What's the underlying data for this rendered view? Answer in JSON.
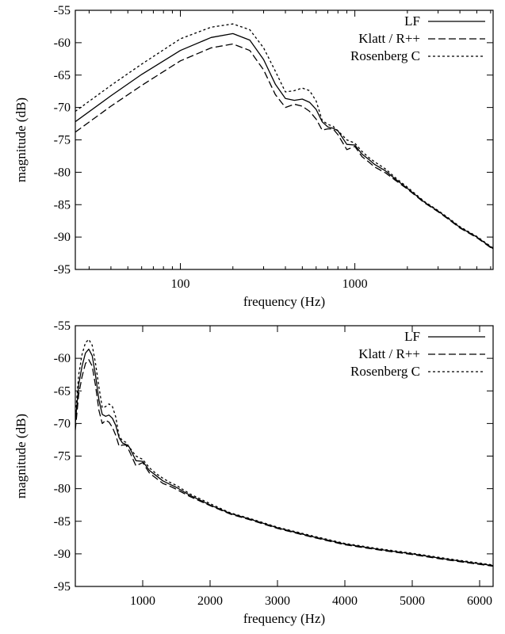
{
  "chart_data": [
    {
      "type": "line",
      "x_scale": "log",
      "xlim": [
        25,
        6200
      ],
      "ylim": [
        -95,
        -55
      ],
      "xlabel": "frequency (Hz)",
      "ylabel": "magnitude (dB)",
      "x_ticks": [
        100,
        1000
      ],
      "x_tick_labels": [
        "100",
        "1000"
      ],
      "y_ticks": [
        -55,
        -60,
        -65,
        -70,
        -75,
        -80,
        -85,
        -90,
        -95
      ],
      "y_tick_labels": [
        "-55",
        "-60",
        "-65",
        "-70",
        "-75",
        "-80",
        "-85",
        "-90",
        "-95"
      ],
      "grid": false,
      "legend_position": "top-right",
      "series": [
        {
          "name": "LF",
          "line_style": "solid",
          "x": [
            25,
            40,
            60,
            100,
            150,
            200,
            250,
            300,
            350,
            400,
            450,
            500,
            550,
            600,
            650,
            700,
            750,
            800,
            900,
            1000,
            1100,
            1200,
            1300,
            1500,
            1700,
            2000,
            2500,
            3000,
            3500,
            4000,
            5000,
            6200
          ],
          "y": [
            -72.2,
            -68.2,
            -64.9,
            -61.2,
            -59.2,
            -58.6,
            -59.6,
            -62.6,
            -66.4,
            -68.6,
            -68.9,
            -68.7,
            -69.2,
            -70.3,
            -72.2,
            -73.0,
            -73.2,
            -73.6,
            -75.7,
            -75.8,
            -77.2,
            -78.0,
            -78.8,
            -79.8,
            -81.0,
            -82.5,
            -84.6,
            -86.0,
            -87.3,
            -88.5,
            -90.0,
            -91.8
          ]
        },
        {
          "name": "Klatt / R++",
          "line_style": "dashed",
          "x": [
            25,
            40,
            60,
            100,
            150,
            200,
            250,
            300,
            350,
            400,
            450,
            500,
            550,
            600,
            650,
            700,
            750,
            800,
            900,
            1000,
            1100,
            1200,
            1300,
            1500,
            1700,
            2000,
            2500,
            3000,
            3500,
            4000,
            5000,
            6200
          ],
          "y": [
            -73.8,
            -69.8,
            -66.6,
            -62.8,
            -60.8,
            -60.2,
            -61.2,
            -64.2,
            -68.0,
            -70.0,
            -69.5,
            -69.8,
            -70.6,
            -71.8,
            -73.5,
            -73.3,
            -73.3,
            -74.2,
            -76.5,
            -76.0,
            -77.6,
            -78.4,
            -79.2,
            -80.1,
            -81.2,
            -82.6,
            -84.7,
            -86.1,
            -87.4,
            -88.6,
            -90.1,
            -91.9
          ]
        },
        {
          "name": "Rosenberg C",
          "line_style": "dotted",
          "x": [
            25,
            40,
            60,
            100,
            150,
            200,
            250,
            300,
            350,
            400,
            450,
            500,
            550,
            600,
            650,
            700,
            750,
            800,
            900,
            1000,
            1100,
            1200,
            1300,
            1500,
            1700,
            2000,
            2500,
            3000,
            3500,
            4000,
            5000,
            6200
          ],
          "y": [
            -70.6,
            -66.6,
            -63.3,
            -59.4,
            -57.6,
            -57.1,
            -58.0,
            -60.8,
            -64.4,
            -67.6,
            -67.4,
            -67.0,
            -67.4,
            -69.0,
            -72.0,
            -72.6,
            -72.9,
            -73.6,
            -75.0,
            -75.5,
            -76.8,
            -77.7,
            -78.4,
            -79.5,
            -80.8,
            -82.3,
            -84.5,
            -85.9,
            -87.2,
            -88.4,
            -89.9,
            -91.7
          ]
        }
      ]
    },
    {
      "type": "line",
      "x_scale": "linear",
      "xlim": [
        0,
        6200
      ],
      "ylim": [
        -95,
        -55
      ],
      "xlabel": "frequency (Hz)",
      "ylabel": "magnitude (dB)",
      "x_ticks": [
        1000,
        2000,
        3000,
        4000,
        5000,
        6000
      ],
      "x_tick_labels": [
        "1000",
        "2000",
        "3000",
        "4000",
        "5000",
        "6000"
      ],
      "y_ticks": [
        -55,
        -60,
        -65,
        -70,
        -75,
        -80,
        -85,
        -90,
        -95
      ],
      "y_tick_labels": [
        "-55",
        "-60",
        "-65",
        "-70",
        "-75",
        "-80",
        "-85",
        "-90",
        "-95"
      ],
      "grid": false,
      "legend_position": "top-right",
      "series": [
        {
          "name": "LF",
          "line_style": "solid",
          "x": [
            0,
            50,
            100,
            150,
            200,
            250,
            300,
            350,
            400,
            450,
            500,
            550,
            600,
            650,
            700,
            750,
            800,
            900,
            1000,
            1100,
            1200,
            1300,
            1400,
            1500,
            1700,
            2000,
            2300,
            2600,
            3000,
            3500,
            4000,
            4500,
            5000,
            5500,
            6200
          ],
          "y": [
            -70.0,
            -64.0,
            -61.2,
            -59.2,
            -58.6,
            -59.6,
            -62.6,
            -66.4,
            -68.6,
            -68.9,
            -68.7,
            -69.2,
            -70.3,
            -72.2,
            -73.0,
            -73.2,
            -73.6,
            -75.7,
            -75.8,
            -77.2,
            -78.0,
            -78.8,
            -79.3,
            -79.8,
            -81.0,
            -82.5,
            -83.8,
            -84.7,
            -86.0,
            -87.3,
            -88.5,
            -89.3,
            -90.0,
            -90.8,
            -91.8
          ]
        },
        {
          "name": "Klatt / R++",
          "line_style": "dashed",
          "x": [
            0,
            50,
            100,
            150,
            200,
            250,
            300,
            350,
            400,
            450,
            500,
            550,
            600,
            650,
            700,
            750,
            800,
            900,
            1000,
            1100,
            1200,
            1300,
            1400,
            1500,
            1700,
            2000,
            2300,
            2600,
            3000,
            3500,
            4000,
            4500,
            5000,
            5500,
            6200
          ],
          "y": [
            -71.0,
            -65.5,
            -62.8,
            -60.8,
            -60.2,
            -61.2,
            -64.2,
            -68.0,
            -70.0,
            -69.5,
            -69.8,
            -70.6,
            -71.8,
            -73.5,
            -73.3,
            -73.3,
            -74.2,
            -76.5,
            -76.0,
            -77.6,
            -78.4,
            -79.2,
            -79.6,
            -80.1,
            -81.2,
            -82.6,
            -83.9,
            -84.8,
            -86.1,
            -87.4,
            -88.6,
            -89.4,
            -90.1,
            -90.9,
            -91.9
          ]
        },
        {
          "name": "Rosenberg C",
          "line_style": "dotted",
          "x": [
            0,
            50,
            100,
            150,
            200,
            250,
            300,
            350,
            400,
            450,
            500,
            550,
            600,
            650,
            700,
            750,
            800,
            900,
            1000,
            1100,
            1200,
            1300,
            1400,
            1500,
            1700,
            2000,
            2300,
            2600,
            3000,
            3500,
            4000,
            4500,
            5000,
            5500,
            6200
          ],
          "y": [
            -69.0,
            -62.5,
            -59.4,
            -57.6,
            -57.1,
            -58.0,
            -60.8,
            -64.4,
            -67.6,
            -67.4,
            -67.0,
            -67.4,
            -69.0,
            -72.0,
            -72.6,
            -72.9,
            -73.6,
            -75.0,
            -75.5,
            -76.8,
            -77.7,
            -78.4,
            -79.0,
            -79.5,
            -80.8,
            -82.3,
            -83.7,
            -84.6,
            -85.9,
            -87.2,
            -88.4,
            -89.2,
            -89.9,
            -90.7,
            -91.7
          ]
        }
      ]
    }
  ]
}
